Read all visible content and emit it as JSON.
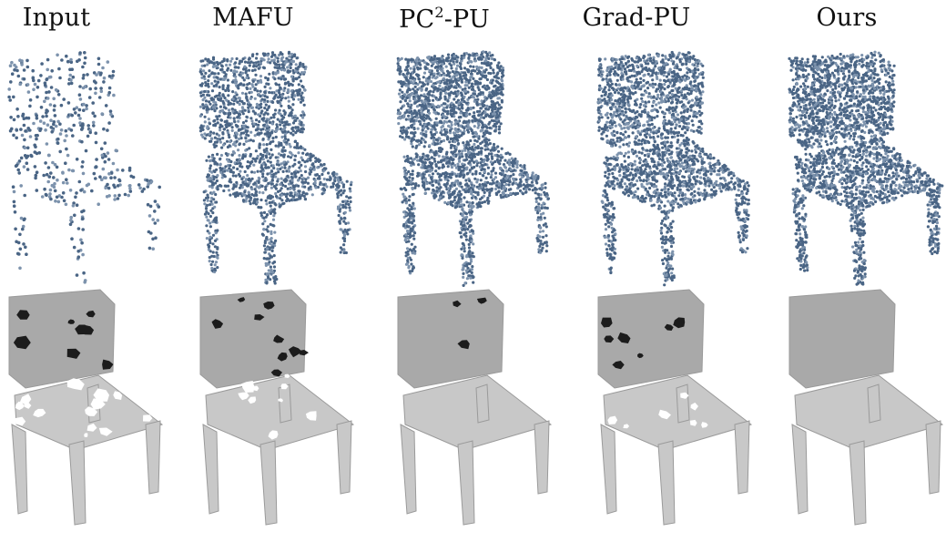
{
  "columns": [
    {
      "id": "input",
      "label": "Input"
    },
    {
      "id": "mafu",
      "label": "MAFU"
    },
    {
      "id": "pc2pu",
      "label_main": "PC",
      "label_sup": "2",
      "label_tail": "-PU"
    },
    {
      "id": "gradpu",
      "label": "Grad-PU"
    },
    {
      "id": "ours",
      "label": "Ours"
    }
  ],
  "rows": [
    {
      "id": "point-clouds",
      "render": "points"
    },
    {
      "id": "meshes",
      "render": "surface"
    }
  ],
  "colors": {
    "point": "#4a6585",
    "point_light": "#7d93ad",
    "mesh": "#c8c8c8",
    "mesh_shade": "#a9a9a9",
    "hole": "#1c1c1c"
  },
  "point_density": {
    "input": 0.18,
    "mafu": 0.72,
    "pc2pu": 0.95,
    "gradpu": 0.85,
    "ours": 1.0
  },
  "mesh_holes": {
    "input": 22,
    "mafu": 18,
    "pc2pu": 3,
    "gradpu": 14,
    "ours": 0
  }
}
